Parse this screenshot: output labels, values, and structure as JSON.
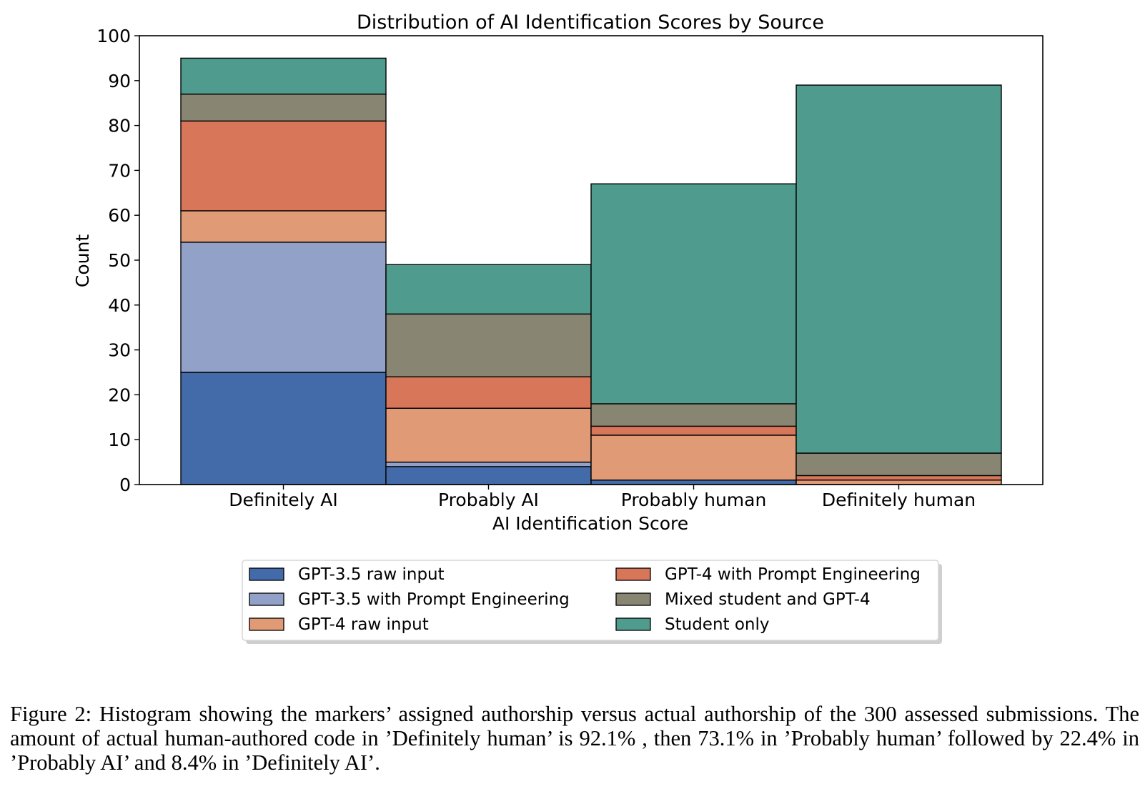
{
  "chart_data": {
    "type": "bar",
    "stacked": true,
    "title": "Distribution of AI Identification Scores by Source",
    "xlabel": "AI Identification Score",
    "ylabel": "Count",
    "ylim": [
      0,
      100
    ],
    "yticks": [
      0,
      10,
      20,
      30,
      40,
      50,
      60,
      70,
      80,
      90,
      100
    ],
    "categories": [
      "Definitely AI",
      "Probably AI",
      "Probably human",
      "Definitely human"
    ],
    "series": [
      {
        "name": "GPT-3.5 raw input",
        "color": "#446BA9",
        "values": [
          25,
          4,
          1,
          0
        ]
      },
      {
        "name": "GPT-3.5 with Prompt Engineering",
        "color": "#92A1C7",
        "values": [
          29,
          1,
          0,
          0
        ]
      },
      {
        "name": "GPT-4 raw input",
        "color": "#E09A76",
        "values": [
          7,
          12,
          10,
          1
        ]
      },
      {
        "name": "GPT-4 with Prompt Engineering",
        "color": "#D8765A",
        "values": [
          20,
          7,
          2,
          1
        ]
      },
      {
        "name": "Mixed student and GPT-4",
        "color": "#888572",
        "values": [
          6,
          14,
          5,
          5
        ]
      },
      {
        "name": "Student only",
        "color": "#4F9B8D",
        "values": [
          8,
          11,
          49,
          82
        ]
      }
    ],
    "legend_placement": "bottom-center",
    "grid": false
  },
  "caption": "Figure 2: Histogram showing the markers’ assigned authorship versus actual authorship of the 300 assessed submissions. The amount of actual human-authored code in ’Definitely human’ is 92.1% , then 73.1% in ’Probably human’ followed by 22.4% in ’Probably AI’ and 8.4% in ’Definitely AI’."
}
